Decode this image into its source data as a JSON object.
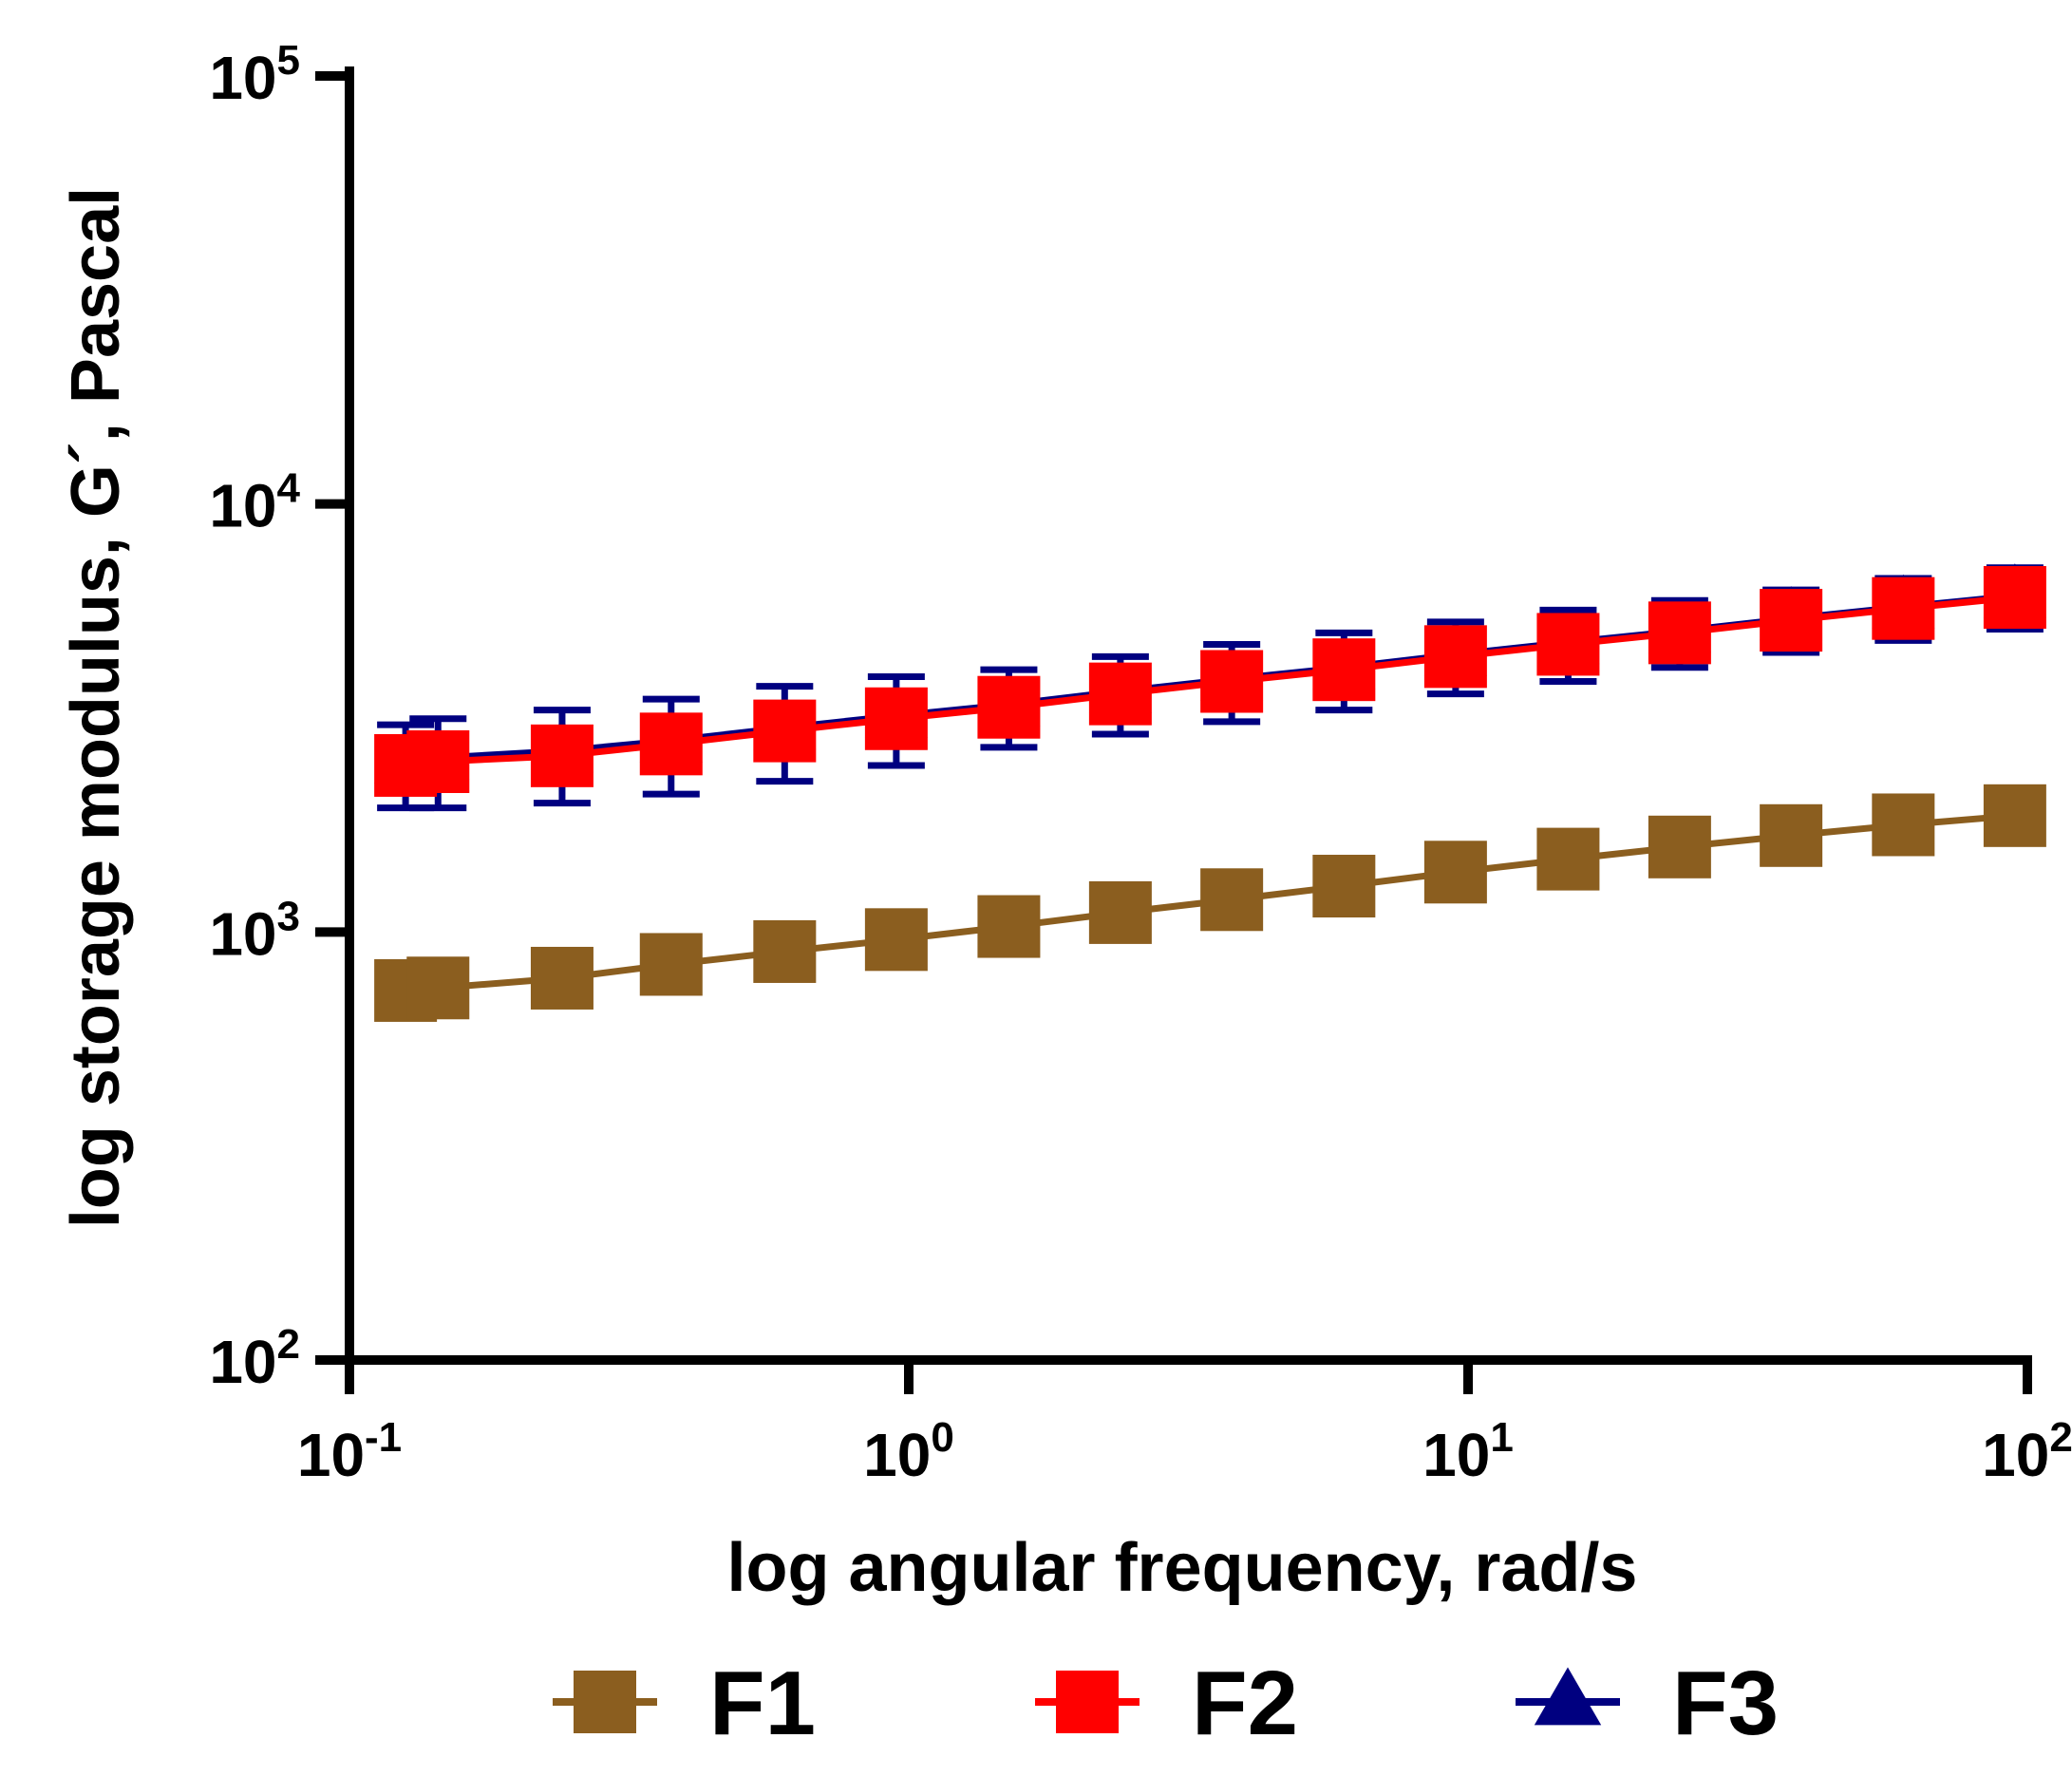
{
  "chart_data": {
    "type": "line",
    "xlabel": "log angular frequency, rad/s",
    "ylabel": "log storage modulus, G´, Pascal",
    "x_scale": "log",
    "y_scale": "log",
    "xlim": [
      0.1,
      100
    ],
    "ylim": [
      100,
      100000
    ],
    "x_ticks": [
      {
        "base": "10",
        "exp": "-1"
      },
      {
        "base": "10",
        "exp": "0"
      },
      {
        "base": "10",
        "exp": "1"
      },
      {
        "base": "10",
        "exp": "2"
      }
    ],
    "y_ticks": [
      {
        "base": "10",
        "exp": "2"
      },
      {
        "base": "10",
        "exp": "3"
      },
      {
        "base": "10",
        "exp": "4"
      },
      {
        "base": "10",
        "exp": "5"
      }
    ],
    "grid": false,
    "legend_position": "bottom",
    "x": [
      0.126,
      0.144,
      0.24,
      0.376,
      0.6,
      0.95,
      1.51,
      2.39,
      3.78,
      6.0,
      9.5,
      15.1,
      23.9,
      37.8,
      60.0,
      95.0
    ],
    "series": [
      {
        "name": "F1",
        "color": "#8B5E1F",
        "marker": "square",
        "values": [
          730,
          740,
          780,
          840,
          900,
          960,
          1030,
          1110,
          1190,
          1280,
          1380,
          1480,
          1580,
          1680,
          1780,
          1870
        ],
        "error": [
          0,
          0,
          0,
          0,
          0,
          0,
          0,
          0,
          0,
          0,
          0,
          0,
          0,
          0,
          0,
          0
        ]
      },
      {
        "name": "F2",
        "color": "#FF0000",
        "marker": "square",
        "values": [
          2450,
          2500,
          2580,
          2750,
          2950,
          3150,
          3350,
          3600,
          3850,
          4100,
          4400,
          4700,
          5000,
          5350,
          5700,
          6050
        ],
        "error": [
          0,
          0,
          0,
          0,
          0,
          0,
          0,
          0,
          0,
          0,
          0,
          0,
          0,
          0,
          0,
          0
        ]
      },
      {
        "name": "F3",
        "color": "#000080",
        "marker": "triangle",
        "values": [
          2500,
          2550,
          2650,
          2800,
          3000,
          3200,
          3400,
          3650,
          3900,
          4150,
          4450,
          4750,
          5050,
          5400,
          5750,
          6100
        ],
        "error": [
          550,
          600,
          650,
          700,
          750,
          750,
          700,
          750,
          800,
          850,
          850,
          900,
          900,
          900,
          950,
          1000
        ]
      }
    ]
  }
}
